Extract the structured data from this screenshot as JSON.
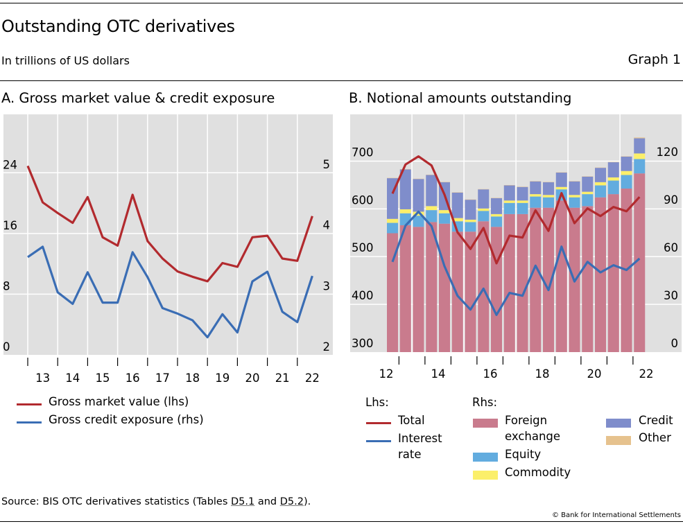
{
  "header": {
    "title": "Outstanding OTC derivatives",
    "subtitle": "In trillions of US dollars",
    "graph_number": "Graph 1"
  },
  "footer": {
    "source_prefix": "Source: BIS OTC derivatives statistics (Tables ",
    "source_link1": "D5.1",
    "source_mid": " and ",
    "source_link2": "D5.2",
    "source_suffix": ").",
    "copyright": "© Bank for International Settlements"
  },
  "colors": {
    "plot_bg": "#e0e0e0",
    "grid": "#ffffff",
    "red": "#b22a2e",
    "blue": "#3a6db4",
    "fx": "#c97b8d",
    "equity": "#62acdf",
    "commodity": "#fbef6a",
    "credit": "#7f8dcb",
    "other": "#e6c28e"
  },
  "chart_data": [
    {
      "type": "line",
      "title": "A. Gross market value & credit exposure",
      "x": [
        "H2 2012",
        "H1 2013",
        "H2 2013",
        "H1 2014",
        "H2 2014",
        "H1 2015",
        "H2 2015",
        "H1 2016",
        "H2 2016",
        "H1 2017",
        "H2 2017",
        "H1 2018",
        "H2 2018",
        "H1 2019",
        "H2 2019",
        "H1 2020",
        "H2 2020",
        "H1 2021",
        "H2 2021",
        "H1 2022"
      ],
      "x_tick_labels": [
        "13",
        "14",
        "15",
        "16",
        "17",
        "18",
        "19",
        "20",
        "21",
        "22"
      ],
      "ylabel_left": "lhs",
      "ylabel_right": "rhs",
      "ylim_left": [
        0,
        31.7
      ],
      "yticks_left": [
        0,
        8,
        16,
        24
      ],
      "ylim_right": [
        2,
        5.96
      ],
      "yticks_right": [
        2,
        3,
        4,
        5
      ],
      "grid": true,
      "legend_placement": "bottom-left",
      "series": [
        {
          "name": "Gross market value (lhs)",
          "axis": "left",
          "color": "#b22a2e",
          "values": [
            24.9,
            20.1,
            18.7,
            17.4,
            20.8,
            15.5,
            14.4,
            21.1,
            15.0,
            12.7,
            11.0,
            10.3,
            9.7,
            12.1,
            11.6,
            15.5,
            15.7,
            12.7,
            12.4,
            18.3
          ]
        },
        {
          "name": "Gross credit exposure (rhs)",
          "axis": "right",
          "color": "#3a6db4",
          "values": [
            3.61,
            3.78,
            3.03,
            2.84,
            3.36,
            2.86,
            2.86,
            3.69,
            3.28,
            2.77,
            2.68,
            2.57,
            2.29,
            2.67,
            2.37,
            3.21,
            3.37,
            2.71,
            2.54,
            3.3
          ]
        }
      ]
    },
    {
      "type": "bar",
      "title": "B. Notional amounts outstanding",
      "stacked": true,
      "categories": [
        "H2 2012",
        "H1 2013",
        "H2 2013",
        "H1 2014",
        "H2 2014",
        "H1 2015",
        "H2 2015",
        "H1 2016",
        "H2 2016",
        "H1 2017",
        "H2 2017",
        "H1 2018",
        "H2 2018",
        "H1 2019",
        "H2 2019",
        "H1 2020",
        "H2 2020",
        "H1 2021",
        "H2 2021",
        "H1 2022"
      ],
      "x_tick_labels": [
        "12",
        "14",
        "16",
        "18",
        "20",
        "22"
      ],
      "ylabel_left": "Lhs",
      "ylabel_right": "Rhs",
      "ylim_left": [
        300,
        798
      ],
      "yticks_left": [
        300,
        400,
        500,
        600,
        700
      ],
      "ylim_right": [
        0,
        149
      ],
      "yticks_right": [
        0,
        30,
        60,
        90,
        120
      ],
      "grid": true,
      "legend_placement": "bottom",
      "bar_series": [
        {
          "name": "Foreign exchange",
          "axis": "right",
          "color": "#c97b8d",
          "values": [
            74.5,
            79.5,
            78.5,
            81.5,
            80.5,
            75.5,
            75.5,
            82.0,
            78.5,
            86.5,
            86.5,
            90.5,
            90.5,
            95.0,
            90.5,
            91.5,
            97.0,
            99.0,
            102.5,
            112.0
          ]
        },
        {
          "name": "Equity",
          "axis": "right",
          "color": "#62acdf",
          "values": [
            6.5,
            7.5,
            7.0,
            7.5,
            6.5,
            6.5,
            6.0,
            6.5,
            6.5,
            7.0,
            7.0,
            7.0,
            6.5,
            7.0,
            6.5,
            7.5,
            7.5,
            8.5,
            8.5,
            9.0
          ]
        },
        {
          "name": "Commodity",
          "axis": "right",
          "color": "#fbef6a",
          "values": [
            2.5,
            2.5,
            2.5,
            2.5,
            2.0,
            2.0,
            1.5,
            1.5,
            1.5,
            1.5,
            1.5,
            1.5,
            1.5,
            1.5,
            1.5,
            1.5,
            2.0,
            2.0,
            2.5,
            3.5
          ]
        },
        {
          "name": "Credit",
          "axis": "right",
          "color": "#7f8dcb",
          "values": [
            25.5,
            25.0,
            20.5,
            19.5,
            17.5,
            16.0,
            12.5,
            12.0,
            10.0,
            9.5,
            8.5,
            8.0,
            8.0,
            9.0,
            8.5,
            9.5,
            9.0,
            9.5,
            9.0,
            9.5
          ]
        },
        {
          "name": "Other",
          "axis": "right",
          "color": "#e6c28e",
          "values": [
            0.2,
            0.2,
            0.2,
            0.2,
            0.2,
            0.2,
            0.2,
            0.2,
            0.2,
            0.2,
            0.2,
            0.2,
            0.2,
            0.2,
            0.2,
            0.2,
            0.2,
            0.2,
            0.2,
            0.5
          ]
        }
      ],
      "line_series": [
        {
          "name": "Total",
          "axis": "left",
          "color": "#b22a2e",
          "values": [
            632,
            693,
            710,
            691,
            630,
            551,
            516,
            560,
            486,
            544,
            540,
            597,
            554,
            633,
            570,
            601,
            585,
            604,
            595,
            625
          ]
        },
        {
          "name": "Interest rate",
          "axis": "left",
          "color": "#3a6db4",
          "values": [
            489,
            565,
            594,
            564,
            480,
            418,
            389,
            433,
            378,
            424,
            418,
            481,
            430,
            521,
            448,
            489,
            467,
            482,
            472,
            496
          ]
        }
      ],
      "legend": {
        "lhs_heading": "Lhs:",
        "rhs_heading": "Rhs:",
        "lhs_items": [
          "Total",
          "Interest\nrate"
        ],
        "rhs_items": [
          "Foreign\nexchange",
          "Equity",
          "Commodity",
          "Credit",
          "Other"
        ]
      }
    }
  ],
  "legendA": {
    "items": [
      "Gross market value (lhs)",
      "Gross credit exposure (rhs)"
    ]
  },
  "legendB": {
    "lhs_heading": "Lhs:",
    "rhs_heading": "Rhs:",
    "total": "Total",
    "ir_line1": "Interest",
    "ir_line2": "rate",
    "fx_line1": "Foreign",
    "fx_line2": "exchange",
    "equity": "Equity",
    "commodity": "Commodity",
    "credit": "Credit",
    "other": "Other"
  }
}
